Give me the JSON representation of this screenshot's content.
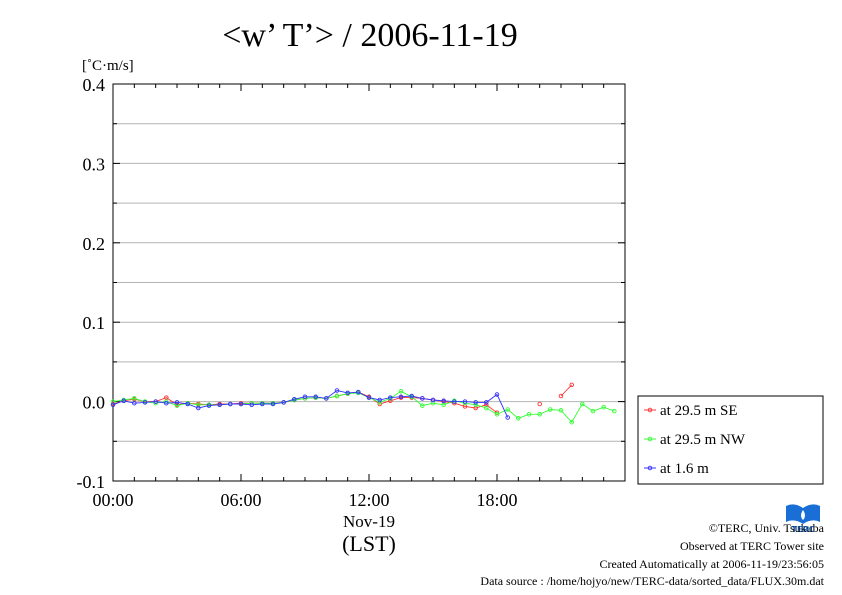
{
  "chart_data": {
    "type": "line",
    "title": "<w’ T’> / 2006-11-19",
    "ylabel": "[˚C·m/s]",
    "ylim": [
      -0.1,
      0.4
    ],
    "yticks": [
      -0.1,
      0.0,
      0.1,
      0.2,
      0.3,
      0.4
    ],
    "ytick_labels": [
      "-0.1",
      "0.0",
      "0.1",
      "0.2",
      "0.3",
      "0.4"
    ],
    "xlim": [
      0,
      24
    ],
    "xticks": [
      0,
      6,
      12,
      18
    ],
    "xtick_labels": [
      "00:00",
      "06:00",
      "12:00",
      "18:00"
    ],
    "date_label": "Nov-19",
    "xlabel": "(LST)",
    "grid": true,
    "legend_position": "bottom-right outside plot",
    "series": [
      {
        "name": "at 29.5 m SE",
        "color": "#ff3333",
        "points": [
          [
            0,
            -0.003
          ],
          [
            0.5,
            0.001
          ],
          [
            1,
            0.003
          ],
          [
            1.5,
            0
          ],
          [
            2,
            0
          ],
          [
            2.5,
            0.005
          ],
          [
            3,
            -0.004
          ],
          [
            3.5,
            -0.002
          ],
          [
            4,
            -0.003
          ],
          [
            4.5,
            -0.004
          ],
          [
            5,
            -0.003
          ],
          [
            5.5,
            -0.003
          ],
          [
            6,
            -0.002
          ],
          [
            6.5,
            -0.002
          ],
          [
            7,
            -0.002
          ],
          [
            7.5,
            -0.002
          ],
          [
            8,
            -0.001
          ],
          [
            8.5,
            0.002
          ],
          [
            9,
            0.004
          ],
          [
            9.5,
            0.005
          ],
          [
            10,
            0.004
          ],
          [
            10.5,
            0.007
          ],
          [
            11,
            0.01
          ],
          [
            11.5,
            0.012
          ],
          [
            12,
            0.006
          ],
          [
            12.5,
            -0.003
          ],
          [
            13,
            0.001
          ],
          [
            13.5,
            0.005
          ],
          [
            14,
            0.005
          ],
          [
            14.5,
            0.004
          ],
          [
            15,
            0.002
          ],
          [
            15.5,
            0
          ],
          [
            16,
            -0.002
          ],
          [
            16.5,
            -0.006
          ],
          [
            17,
            -0.008
          ],
          [
            17.5,
            -0.004
          ],
          [
            18,
            -0.014
          ],
          null,
          [
            20,
            -0.003
          ],
          null,
          [
            21,
            0.007
          ],
          [
            21.5,
            0.021
          ]
        ]
      },
      {
        "name": "at 29.5 m NW",
        "color": "#33ff33",
        "points": [
          [
            0,
            0
          ],
          [
            0.5,
            0.002
          ],
          [
            1,
            0.004
          ],
          [
            1.5,
            0
          ],
          [
            2,
            -0.002
          ],
          [
            2.5,
            0
          ],
          [
            3,
            -0.005
          ],
          [
            3.5,
            -0.002
          ],
          [
            4,
            -0.004
          ],
          [
            4.5,
            -0.004
          ],
          [
            5,
            -0.004
          ],
          [
            5.5,
            -0.003
          ],
          [
            6,
            -0.003
          ],
          [
            6.5,
            -0.002
          ],
          [
            7,
            -0.002
          ],
          [
            7.5,
            -0.002
          ],
          [
            8,
            -0.001
          ],
          [
            8.5,
            0.002
          ],
          [
            9,
            0.004
          ],
          [
            9.5,
            0.005
          ],
          [
            10,
            0.004
          ],
          [
            10.5,
            0.007
          ],
          [
            11,
            0.01
          ],
          [
            11.5,
            0.011
          ],
          [
            12,
            0.005
          ],
          [
            12.5,
            -0.001
          ],
          [
            13,
            0.004
          ],
          [
            13.5,
            0.013
          ],
          [
            14,
            0.006
          ],
          [
            14.5,
            -0.005
          ],
          [
            15,
            -0.002
          ],
          [
            15.5,
            -0.004
          ],
          [
            16,
            0.001
          ],
          [
            16.5,
            -0.002
          ],
          [
            17,
            -0.004
          ],
          [
            17.5,
            -0.008
          ],
          [
            18,
            -0.016
          ],
          [
            18.5,
            -0.01
          ],
          [
            19,
            -0.021
          ],
          [
            19.5,
            -0.016
          ],
          [
            20,
            -0.016
          ],
          [
            20.5,
            -0.01
          ],
          [
            21,
            -0.011
          ],
          [
            21.5,
            -0.026
          ],
          [
            22,
            -0.003
          ],
          [
            22.5,
            -0.012
          ],
          [
            23,
            -0.007
          ],
          [
            23.5,
            -0.012
          ]
        ]
      },
      {
        "name": "at 1.6 m",
        "color": "#3333ff",
        "points": [
          [
            0,
            -0.004
          ],
          [
            0.5,
            0.001
          ],
          [
            1,
            -0.002
          ],
          [
            1.5,
            -0.001
          ],
          [
            2,
            0
          ],
          [
            2.5,
            -0.002
          ],
          [
            3,
            -0.001
          ],
          [
            3.5,
            -0.003
          ],
          [
            4,
            -0.008
          ],
          [
            4.5,
            -0.005
          ],
          [
            5,
            -0.004
          ],
          [
            5.5,
            -0.003
          ],
          [
            6,
            -0.003
          ],
          [
            6.5,
            -0.004
          ],
          [
            7,
            -0.003
          ],
          [
            7.5,
            -0.003
          ],
          [
            8,
            -0.001
          ],
          [
            8.5,
            0.003
          ],
          [
            9,
            0.006
          ],
          [
            9.5,
            0.006
          ],
          [
            10,
            0.004
          ],
          [
            10.5,
            0.014
          ],
          [
            11,
            0.011
          ],
          [
            11.5,
            0.012
          ],
          [
            12,
            0.005
          ],
          [
            12.5,
            0.002
          ],
          [
            13,
            0.005
          ],
          [
            13.5,
            0.006
          ],
          [
            14,
            0.007
          ],
          [
            14.5,
            0.004
          ],
          [
            15,
            0.002
          ],
          [
            15.5,
            0.001
          ],
          [
            16,
            0
          ],
          [
            16.5,
            0
          ],
          [
            17,
            -0.001
          ],
          [
            17.5,
            -0.001
          ],
          [
            18,
            0.009
          ],
          [
            18.5,
            -0.02
          ]
        ]
      }
    ]
  },
  "credits": {
    "copyright": "©TERC, Univ. Tsukuba",
    "site": "Observed at TERC Tower site",
    "created": "Created Automatically at 2006-11-19/23:56:05",
    "source": "Data source : /home/hojyo/new/TERC-data/sorted_data/FLUX.30m.dat"
  },
  "logo": {
    "text": "TERC",
    "color": "#1a6fd6"
  }
}
